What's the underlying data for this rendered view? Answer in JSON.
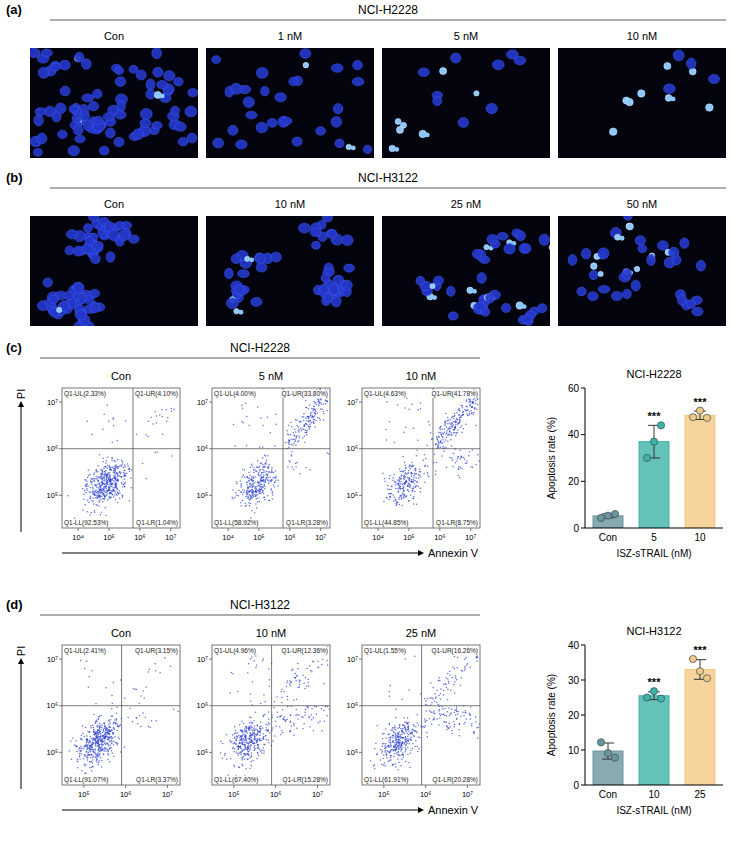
{
  "panels": [
    {
      "letter": "(a)",
      "cell_line": "NCI-H2228",
      "images": [
        "Con",
        "1 nM",
        "5 nM",
        "10 nM"
      ]
    },
    {
      "letter": "(b)",
      "cell_line": "NCI-H3122",
      "images": [
        "Con",
        "10 nM",
        "25 nM",
        "50 nM"
      ]
    },
    {
      "letter": "(c)",
      "cell_line": "NCI-H2228",
      "x_label": "Annexin V",
      "y_label": "PI"
    },
    {
      "letter": "(d)",
      "cell_line": "NCI-H3122",
      "x_label": "Annexin V",
      "y_label": "PI"
    }
  ],
  "chart_data": [
    {
      "type": "scatter",
      "title": "Con",
      "log": true,
      "xlim": [
        3000,
        20000000
      ],
      "ylim": [
        20000,
        20000000
      ],
      "xticks": [
        {
          "value": 10000,
          "label": "10⁴"
        },
        {
          "value": 100000,
          "label": "10⁵"
        },
        {
          "value": 1000000,
          "label": "10⁶"
        },
        {
          "value": 10000000,
          "label": "10⁷"
        }
      ],
      "yticks": [
        {
          "value": 100000,
          "label": "10⁵"
        },
        {
          "value": 1000000,
          "label": "10⁶"
        },
        {
          "value": 10000000,
          "label": "10⁷"
        }
      ],
      "gate_x": 600000,
      "gate_y": 1000000,
      "quadrants": [
        {
          "label": "Q1-UL(2.33%)",
          "value": 2.33
        },
        {
          "label": "Q1-UR(4.10%)",
          "value": 4.1
        },
        {
          "label": "Q1-LL(92.53%)",
          "value": 92.53
        },
        {
          "label": "Q1-LR(1.04%)",
          "value": 1.04
        }
      ]
    },
    {
      "type": "scatter",
      "title": "5 nM",
      "log": true,
      "xlim": [
        3000,
        20000000
      ],
      "ylim": [
        20000,
        20000000
      ],
      "xticks": [
        {
          "value": 10000,
          "label": "10⁴"
        },
        {
          "value": 100000,
          "label": "10⁵"
        },
        {
          "value": 1000000,
          "label": "10⁶"
        },
        {
          "value": 10000000,
          "label": "10⁷"
        }
      ],
      "yticks": [
        {
          "value": 100000,
          "label": "10⁵"
        },
        {
          "value": 1000000,
          "label": "10⁶"
        },
        {
          "value": 10000000,
          "label": "10⁷"
        }
      ],
      "gate_x": 600000,
      "gate_y": 1000000,
      "quadrants": [
        {
          "label": "Q1-UL(4.00%)",
          "value": 4.0
        },
        {
          "label": "Q1-UR(33.80%)",
          "value": 33.8
        },
        {
          "label": "Q1-LL(58.92%)",
          "value": 58.92
        },
        {
          "label": "Q1-LR(3.28%)",
          "value": 3.28
        }
      ]
    },
    {
      "type": "scatter",
      "title": "10 nM",
      "log": true,
      "xlim": [
        3000,
        20000000
      ],
      "ylim": [
        20000,
        20000000
      ],
      "xticks": [
        {
          "value": 10000,
          "label": "10⁴"
        },
        {
          "value": 100000,
          "label": "10⁵"
        },
        {
          "value": 1000000,
          "label": "10⁶"
        },
        {
          "value": 10000000,
          "label": "10⁷"
        }
      ],
      "yticks": [
        {
          "value": 100000,
          "label": "10⁵"
        },
        {
          "value": 1000000,
          "label": "10⁶"
        },
        {
          "value": 10000000,
          "label": "10⁷"
        }
      ],
      "gate_x": 600000,
      "gate_y": 1000000,
      "quadrants": [
        {
          "label": "Q1-UL(4.63%)",
          "value": 4.63
        },
        {
          "label": "Q1-UR(41.78%)",
          "value": 41.78
        },
        {
          "label": "Q1-LL(44.85%)",
          "value": 44.85
        },
        {
          "label": "Q1-LR(8.75%)",
          "value": 8.75
        }
      ]
    },
    {
      "type": "bar",
      "title": "NCI-H2228",
      "x_label": "ISZ-sTRAIL (nM)",
      "y_label": "Apoptosis rate (%)",
      "categories": [
        "Con",
        "5",
        "10"
      ],
      "values": [
        5.2,
        37,
        48.3
      ],
      "errors": [
        0.9,
        7,
        1.8
      ],
      "points": [
        [
          4.3,
          5.3,
          6.0
        ],
        [
          30,
          37,
          44
        ],
        [
          47.5,
          50.3,
          47.2
        ]
      ],
      "colors": [
        "#6d959d",
        "#3fb3a8",
        "#f4c983"
      ],
      "annotations": [
        null,
        "***",
        "***"
      ],
      "ylim": [
        0,
        60
      ],
      "yticks": [
        0,
        20,
        40,
        60
      ]
    },
    {
      "type": "scatter",
      "title": "Con",
      "log": true,
      "xlim": [
        30000,
        20000000
      ],
      "ylim": [
        20000,
        20000000
      ],
      "xticks": [
        {
          "value": 100000,
          "label": "10⁵"
        },
        {
          "value": 1000000,
          "label": "10⁶"
        },
        {
          "value": 10000000,
          "label": "10⁷"
        }
      ],
      "yticks": [
        {
          "value": 100000,
          "label": "10⁵"
        },
        {
          "value": 1000000,
          "label": "10⁶"
        },
        {
          "value": 10000000,
          "label": "10⁷"
        }
      ],
      "gate_x": 800000,
      "gate_y": 1000000,
      "quadrants": [
        {
          "label": "Q1-UL(2.41%)",
          "value": 2.41
        },
        {
          "label": "Q1-UR(3.15%)",
          "value": 3.15
        },
        {
          "label": "Q1-LL(91.07%)",
          "value": 91.07
        },
        {
          "label": "Q1-LR(3.37%)",
          "value": 3.37
        }
      ]
    },
    {
      "type": "scatter",
      "title": "10 nM",
      "log": true,
      "xlim": [
        30000,
        20000000
      ],
      "ylim": [
        20000,
        20000000
      ],
      "xticks": [
        {
          "value": 100000,
          "label": "10⁵"
        },
        {
          "value": 1000000,
          "label": "10⁶"
        },
        {
          "value": 10000000,
          "label": "10⁷"
        }
      ],
      "yticks": [
        {
          "value": 100000,
          "label": "10⁵"
        },
        {
          "value": 1000000,
          "label": "10⁶"
        },
        {
          "value": 10000000,
          "label": "10⁷"
        }
      ],
      "gate_x": 800000,
      "gate_y": 1000000,
      "quadrants": [
        {
          "label": "Q1-UL(4.96%)",
          "value": 4.96
        },
        {
          "label": "Q1-UR(12.36%)",
          "value": 12.36
        },
        {
          "label": "Q1-LL(67.40%)",
          "value": 67.4
        },
        {
          "label": "Q1-LR(15.28%)",
          "value": 15.28
        }
      ]
    },
    {
      "type": "scatter",
      "title": "25 nM",
      "log": true,
      "xlim": [
        30000,
        20000000
      ],
      "ylim": [
        20000,
        20000000
      ],
      "xticks": [
        {
          "value": 100000,
          "label": "10⁵"
        },
        {
          "value": 1000000,
          "label": "10⁶"
        },
        {
          "value": 10000000,
          "label": "10⁷"
        }
      ],
      "yticks": [
        {
          "value": 100000,
          "label": "10⁵"
        },
        {
          "value": 1000000,
          "label": "10⁶"
        },
        {
          "value": 10000000,
          "label": "10⁷"
        }
      ],
      "gate_x": 800000,
      "gate_y": 1000000,
      "quadrants": [
        {
          "label": "Q1-UL(1.55%)",
          "value": 1.55
        },
        {
          "label": "Q1-UR(16.26%)",
          "value": 16.26
        },
        {
          "label": "Q1-LL(61.91%)",
          "value": 61.91
        },
        {
          "label": "Q1-LR(20.28%)",
          "value": 20.28
        }
      ]
    },
    {
      "type": "bar",
      "title": "NCI-H3122",
      "x_label": "ISZ-sTRAIL (nM)",
      "y_label": "Apoptosis rate (%)",
      "categories": [
        "Con",
        "10",
        "25"
      ],
      "values": [
        9.7,
        25.5,
        33
      ],
      "errors": [
        2.3,
        1.1,
        2.8
      ],
      "points": [
        [
          12.2,
          9.1,
          7.8
        ],
        [
          25,
          26.8,
          24.7
        ],
        [
          36,
          32.5,
          30.5
        ]
      ],
      "colors": [
        "#6d959d",
        "#3fb3a8",
        "#f4c983"
      ],
      "annotations": [
        null,
        "***",
        "***"
      ],
      "ylim": [
        0,
        40
      ],
      "yticks": [
        0,
        10,
        20,
        30,
        40
      ]
    }
  ]
}
